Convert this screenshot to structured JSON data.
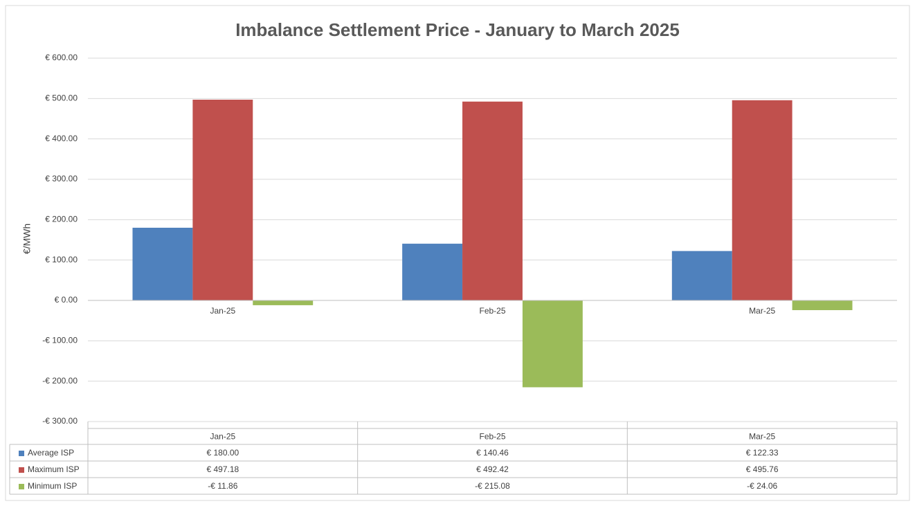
{
  "chart_data": {
    "type": "bar",
    "title": "Imbalance Settlement Price - January to March 2025",
    "ylabel": "€/MWh",
    "categories": [
      "Jan-25",
      "Feb-25",
      "Mar-25"
    ],
    "series": [
      {
        "name": "Average ISP",
        "color": "#4f81bd",
        "values": [
          180.0,
          140.46,
          122.33
        ],
        "value_labels": [
          "€ 180.00",
          "€ 140.46",
          "€ 122.33"
        ]
      },
      {
        "name": "Maximum ISP",
        "color": "#c0504d",
        "values": [
          497.18,
          492.42,
          495.76
        ],
        "value_labels": [
          "€ 497.18",
          "€ 492.42",
          "€ 495.76"
        ]
      },
      {
        "name": "Minimum ISP",
        "color": "#9bbb59",
        "values": [
          -11.86,
          -215.08,
          -24.06
        ],
        "value_labels": [
          "-€ 11.86",
          "-€ 215.08",
          "-€ 24.06"
        ]
      }
    ],
    "ylim": [
      -300,
      600
    ],
    "yticks": [
      {
        "value": -300,
        "label": "-€ 300.00"
      },
      {
        "value": -200,
        "label": "-€ 200.00"
      },
      {
        "value": -100,
        "label": "-€ 100.00"
      },
      {
        "value": 0,
        "label": "€ 0.00"
      },
      {
        "value": 100,
        "label": "€ 100.00"
      },
      {
        "value": 200,
        "label": "€ 200.00"
      },
      {
        "value": 300,
        "label": "€ 300.00"
      },
      {
        "value": 400,
        "label": "€ 400.00"
      },
      {
        "value": 500,
        "label": "€ 500.00"
      },
      {
        "value": 600,
        "label": "€ 600.00"
      }
    ],
    "grid": true
  }
}
